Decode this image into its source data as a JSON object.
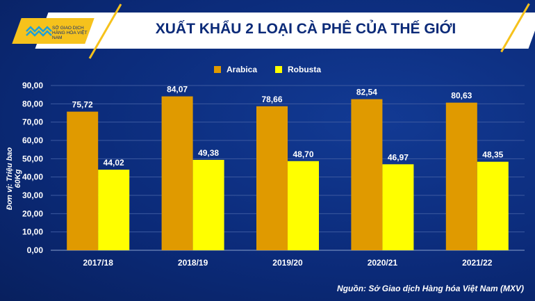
{
  "logo": {
    "text": "SỞ GIAO DỊCH HÀNG HÓA VIỆT NAM"
  },
  "title": "XUẤT KHẨU 2 LOẠI CÀ PHÊ CỦA THẾ GIỚI",
  "source": "Nguồn: Sở Giao dịch Hàng hóa Việt Nam (MXV)",
  "chart_data": {
    "type": "bar",
    "title": "XUẤT KHẨU 2 LOẠI CÀ PHÊ CỦA THẾ GIỚI",
    "ylabel": "Đơn vị: Triệu bao 60Kg",
    "xlabel": "",
    "ylim": [
      0,
      90
    ],
    "yticks": [
      "0,00",
      "10,00",
      "20,00",
      "30,00",
      "40,00",
      "50,00",
      "60,00",
      "70,00",
      "80,00",
      "90,00"
    ],
    "categories": [
      "2017/18",
      "2018/19",
      "2019/20",
      "2020/21",
      "2021/22"
    ],
    "legend_position": "top",
    "series": [
      {
        "name": "Arabica",
        "color": "#e09a00",
        "values": [
          75.72,
          84.07,
          78.66,
          82.54,
          80.63
        ],
        "labels": [
          "75,72",
          "84,07",
          "78,66",
          "82,54",
          "80,63"
        ]
      },
      {
        "name": "Robusta",
        "color": "#ffff00",
        "values": [
          44.02,
          49.38,
          48.7,
          46.97,
          48.35
        ],
        "labels": [
          "44,02",
          "49,38",
          "48,70",
          "46,97",
          "48,35"
        ]
      }
    ]
  }
}
